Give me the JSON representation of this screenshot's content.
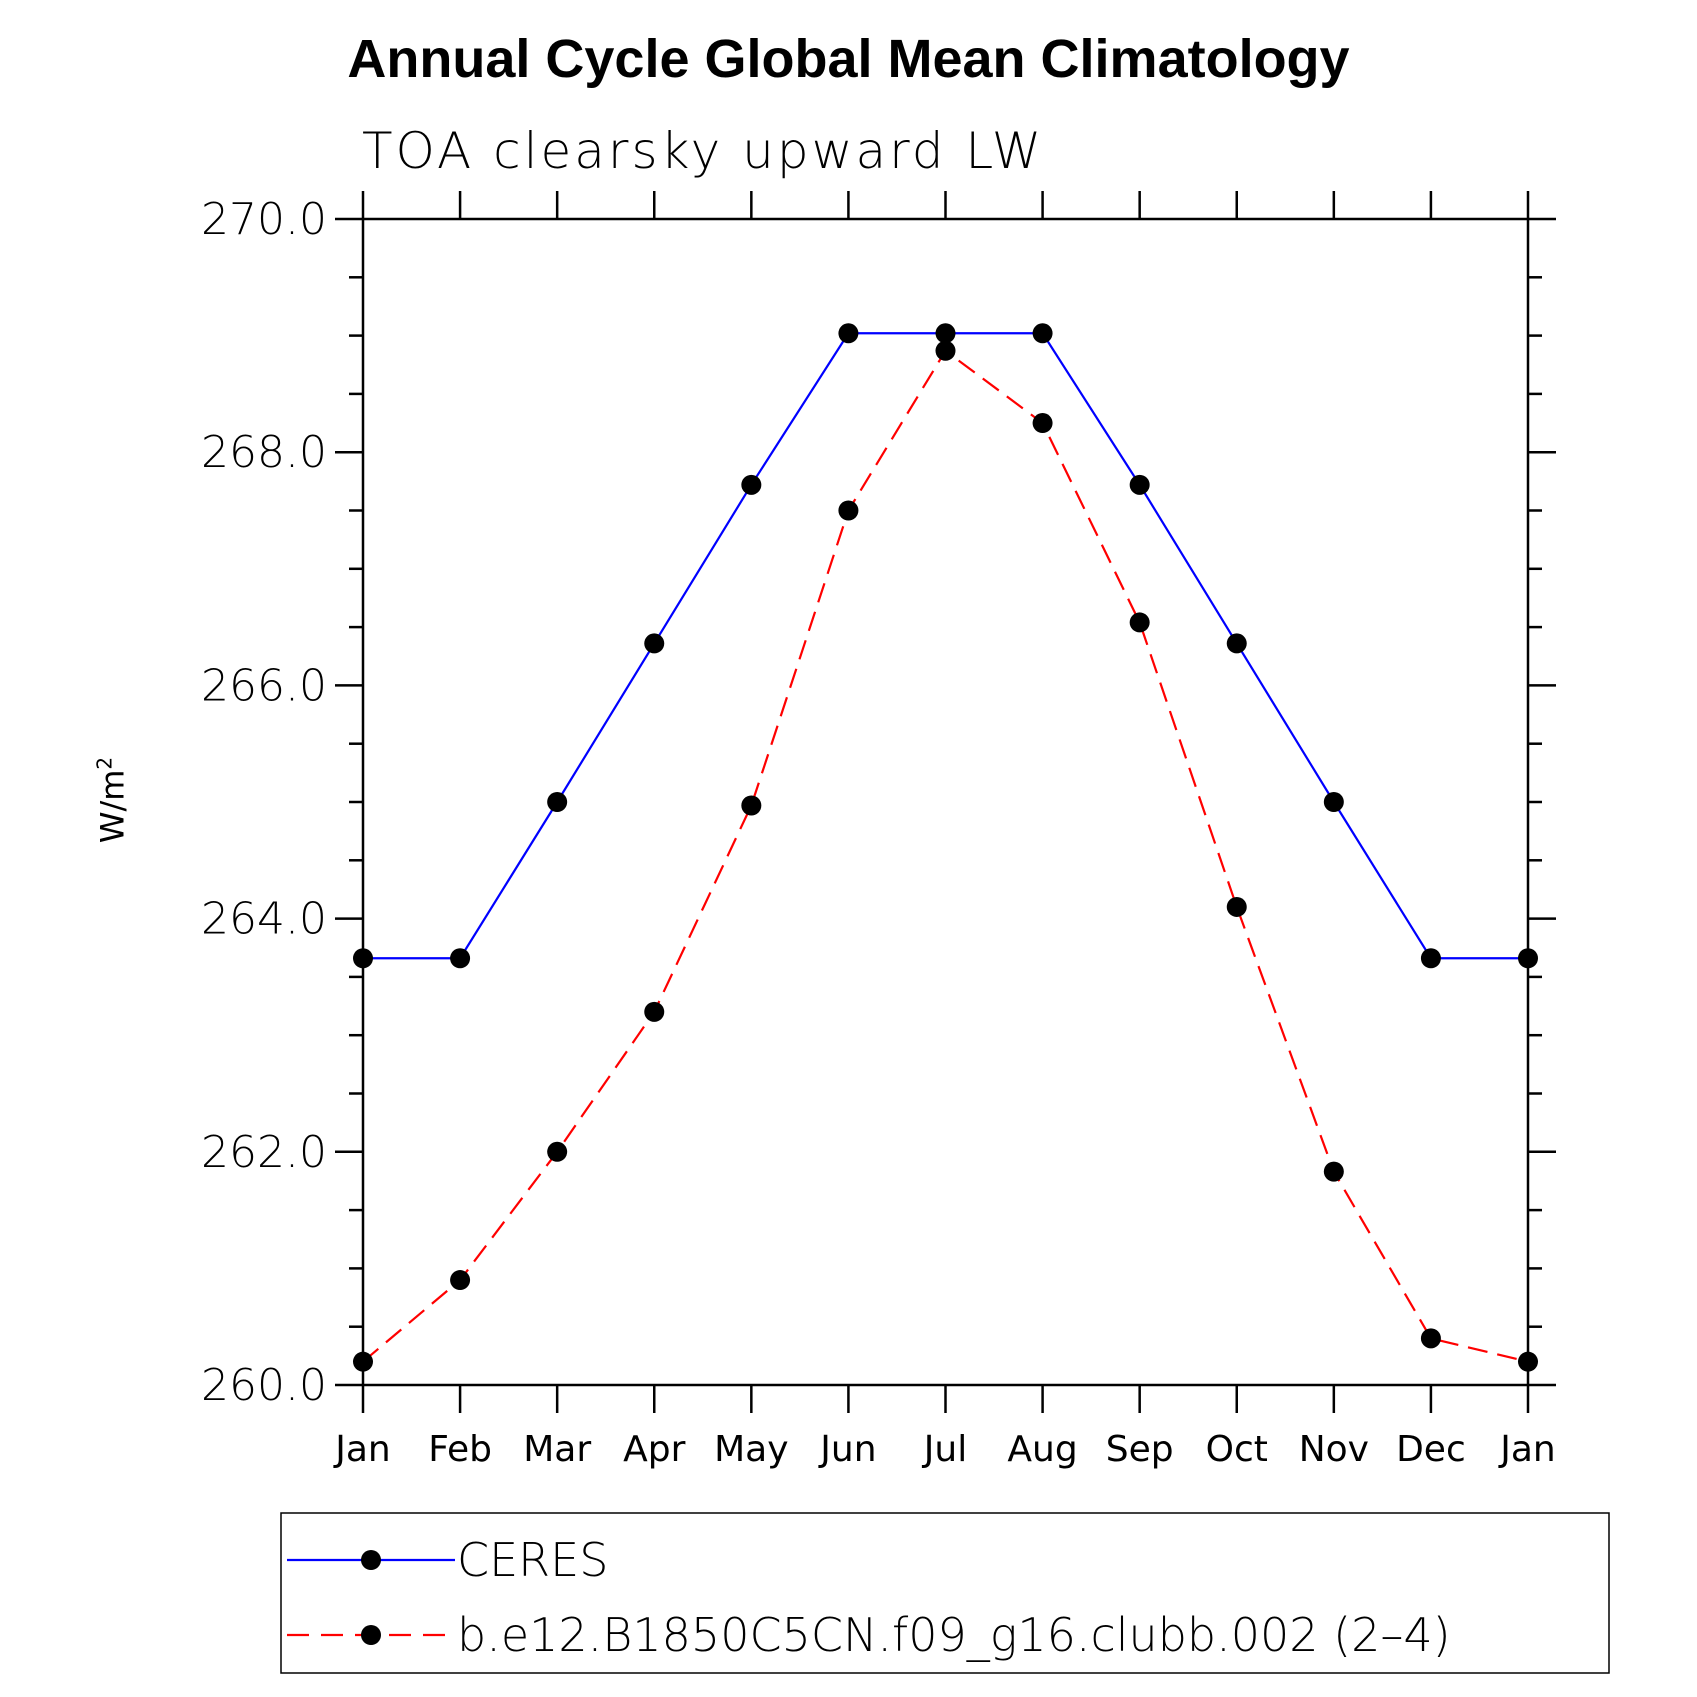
{
  "title": "Annual Cycle Global Mean Climatology",
  "subtitle": "TOA clearsky upward LW",
  "chart_data": {
    "type": "line",
    "title": "Annual Cycle Global Mean Climatology",
    "subtitle": "TOA clearsky upward LW",
    "xlabel": "",
    "ylabel": "W/m",
    "ylabel_sup": "2",
    "categories": [
      "Jan",
      "Feb",
      "Mar",
      "Apr",
      "May",
      "Jun",
      "Jul",
      "Aug",
      "Sep",
      "Oct",
      "Nov",
      "Dec",
      "Jan"
    ],
    "ylim": [
      260.0,
      270.0
    ],
    "yticks": [
      260.0,
      262.0,
      264.0,
      266.0,
      268.0,
      270.0
    ],
    "ytick_labels": [
      "260.0",
      "262.0",
      "264.0",
      "266.0",
      "268.0",
      "270.0"
    ],
    "grid": false,
    "legend_position": "bottom",
    "series": [
      {
        "name": "CERES",
        "color": "#0000ff",
        "dash": "solid",
        "marker": "filled-circle",
        "values": [
          263.66,
          263.66,
          265.0,
          266.36,
          267.72,
          269.02,
          269.02,
          269.02,
          267.72,
          266.36,
          265.0,
          263.66,
          263.66
        ]
      },
      {
        "name": "b.e12.B1850C5CN.f09_g16.clubb.002 (2–4)",
        "color": "#ff0000",
        "dash": "dashed",
        "marker": "filled-circle",
        "values": [
          260.2,
          260.9,
          262.0,
          263.2,
          264.97,
          267.5,
          268.87,
          268.25,
          266.54,
          264.1,
          261.83,
          260.4,
          260.2
        ]
      }
    ]
  }
}
